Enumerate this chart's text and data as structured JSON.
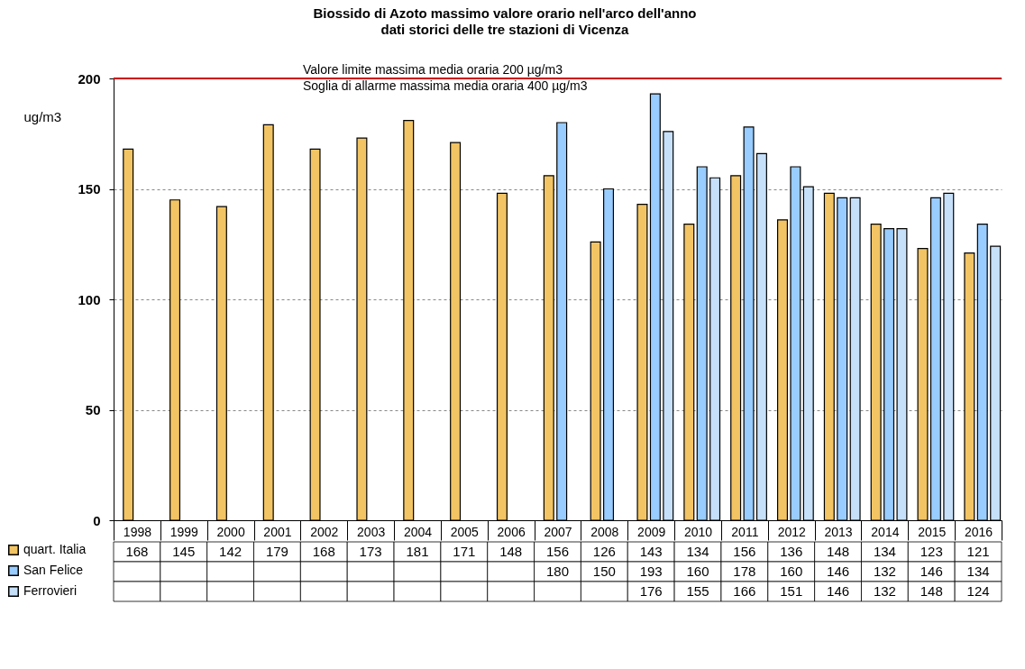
{
  "chart_data": {
    "type": "bar",
    "title": "Biossido di Azoto massimo valore orario nell'arco dell'anno",
    "subtitle": "dati storici delle tre stazioni di Vicenza",
    "ylabel": "ug/m3",
    "categories": [
      "1998",
      "1999",
      "2000",
      "2001",
      "2002",
      "2003",
      "2004",
      "2005",
      "2006",
      "2007",
      "2008",
      "2009",
      "2010",
      "2011",
      "2012",
      "2013",
      "2014",
      "2015",
      "2016"
    ],
    "series": [
      {
        "name": "quart. Italia",
        "color": "#f2c464",
        "values": [
          168,
          145,
          142,
          179,
          168,
          173,
          181,
          171,
          148,
          156,
          126,
          143,
          134,
          156,
          136,
          148,
          134,
          123,
          121
        ]
      },
      {
        "name": "San Felice",
        "color": "#99ccff",
        "values": [
          null,
          null,
          null,
          null,
          null,
          null,
          null,
          null,
          null,
          180,
          150,
          193,
          160,
          178,
          160,
          146,
          132,
          146,
          134
        ]
      },
      {
        "name": "Ferrovieri",
        "color": "#c6e0fa",
        "values": [
          null,
          null,
          null,
          null,
          null,
          null,
          null,
          null,
          null,
          null,
          null,
          176,
          155,
          166,
          151,
          146,
          132,
          148,
          124
        ]
      }
    ],
    "ylim": [
      0,
      200
    ],
    "yticks": [
      0,
      50,
      100,
      150,
      200
    ],
    "grid": "y",
    "legend": "bottom left",
    "data_labels": true,
    "ref_lines": [
      {
        "axis": "y",
        "value": 200,
        "label": "Valore limite massima media oraria 200 µg/m3",
        "color": "#cc0000"
      }
    ],
    "annotations": [
      "Soglia di allarme massima media oraria 400 µg/m3"
    ]
  }
}
